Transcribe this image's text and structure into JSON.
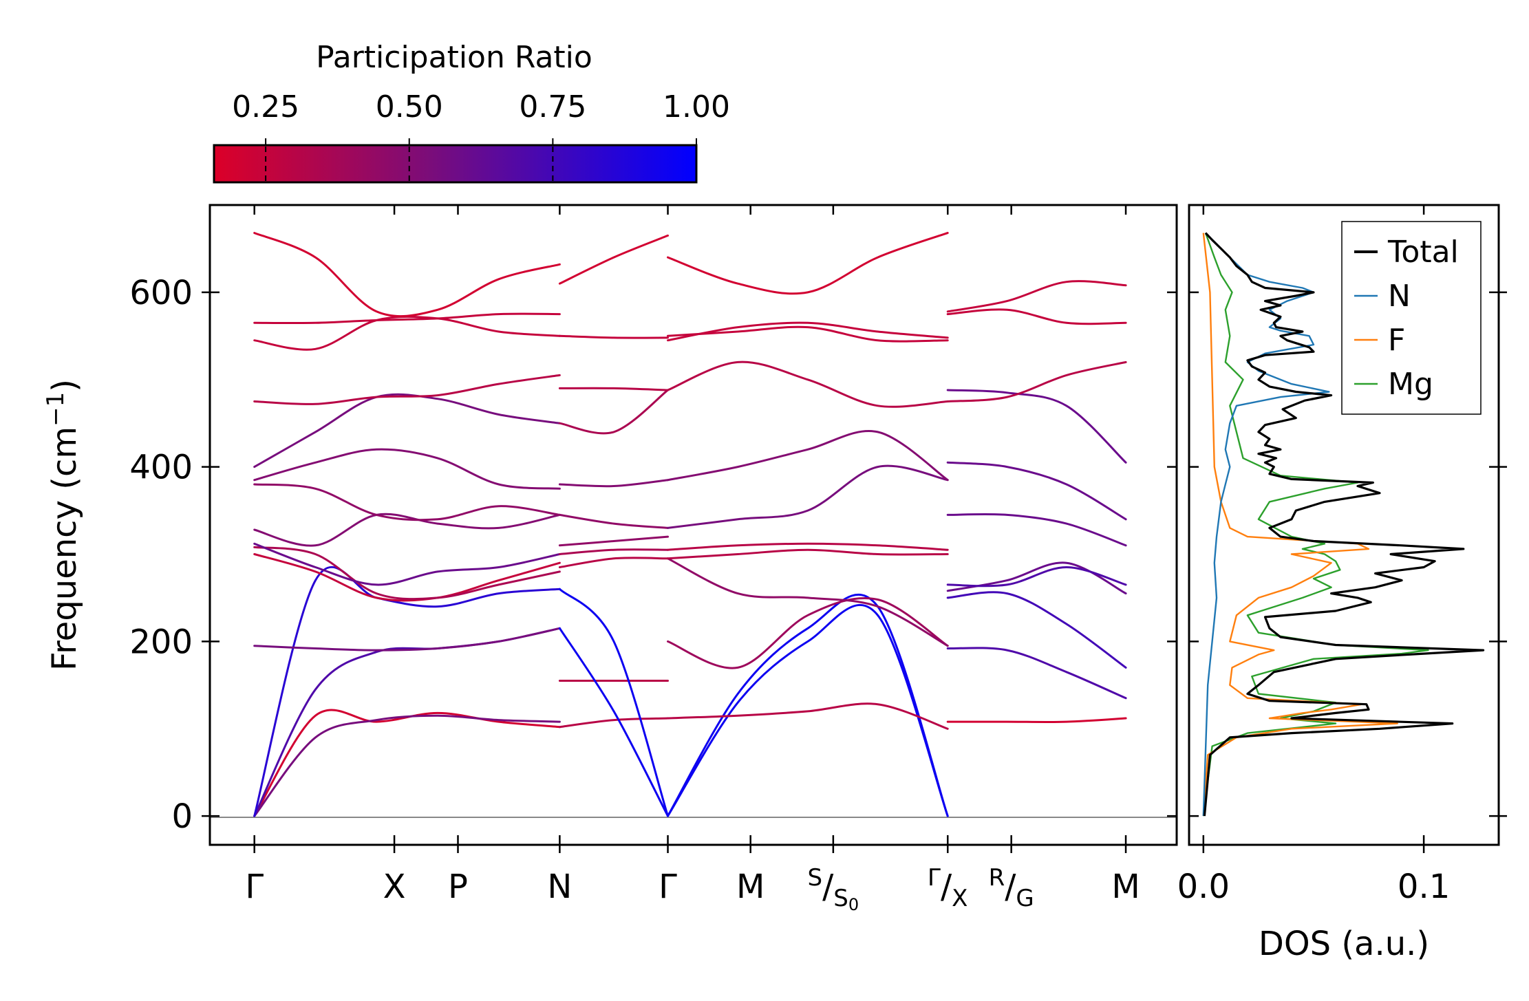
{
  "chart_data": [
    {
      "type": "colorbar",
      "title": "Participation Ratio",
      "ticks": [
        "0.25",
        "0.50",
        "0.75",
        "1.00"
      ],
      "tick_values": [
        0.25,
        0.5,
        0.75,
        1.0
      ],
      "range": [
        0.16,
        1.0
      ],
      "color_low": "#dc0028",
      "color_mid": "#7a0d7a",
      "color_high": "#0000ff"
    },
    {
      "type": "line",
      "subtype": "phonon-dispersion",
      "ylabel": "Frequency (cm",
      "ylabel_sup": "−1",
      "ylabel_close": ")",
      "ylim": [
        -33,
        700
      ],
      "yticks": [
        "0",
        "200",
        "400",
        "600"
      ],
      "ytick_values": [
        0,
        200,
        400,
        600
      ],
      "xlim": [
        -0.35,
        7.25
      ],
      "kpoints": [
        {
          "label": "Γ",
          "x": 0
        },
        {
          "label": "X",
          "x": 1.1
        },
        {
          "label": "P",
          "x": 1.6
        },
        {
          "label": "N",
          "x": 2.4
        },
        {
          "label": "Γ",
          "x": 3.25
        },
        {
          "label": "M",
          "x": 3.9
        },
        {
          "label": "S",
          "sub": "S",
          "sub2": "0",
          "x": 4.55
        },
        {
          "label": "Γ",
          "sub": "X",
          "x": 5.45
        },
        {
          "label": "R",
          "sub": "G",
          "x": 5.95
        },
        {
          "label": "M",
          "x": 6.85
        }
      ],
      "segments": [
        {
          "x": [
            0,
            2.4
          ],
          "bands": [
            {
              "y": [
                0,
                115,
                108,
                118,
                108,
                102
              ],
              "pr": 0.2
            },
            {
              "y": [
                0,
                90,
                110,
                115,
                110,
                108
              ],
              "pr": 0.55
            },
            {
              "y": [
                0,
                145,
                188,
                192,
                200,
                215
              ],
              "pr": 0.7
            },
            {
              "y": [
                0,
                270,
                250,
                240,
                255,
                260
              ],
              "pr": 0.85
            },
            {
              "y": [
                195,
                192,
                190,
                192,
                200,
                215
              ],
              "pr": 0.55
            },
            {
              "y": [
                300,
                280,
                250,
                250,
                270,
                290
              ],
              "pr": 0.25
            },
            {
              "y": [
                308,
                300,
                255,
                250,
                265,
                280
              ],
              "pr": 0.35
            },
            {
              "y": [
                312,
                285,
                265,
                280,
                285,
                300
              ],
              "pr": 0.6
            },
            {
              "y": [
                328,
                310,
                345,
                335,
                330,
                345
              ],
              "pr": 0.5
            },
            {
              "y": [
                380,
                375,
                345,
                340,
                355,
                345
              ],
              "pr": 0.45
            },
            {
              "y": [
                385,
                405,
                420,
                410,
                380,
                375
              ],
              "pr": 0.5
            },
            {
              "y": [
                400,
                440,
                480,
                478,
                460,
                450
              ],
              "pr": 0.55
            },
            {
              "y": [
                475,
                472,
                480,
                482,
                495,
                505
              ],
              "pr": 0.3
            },
            {
              "y": [
                545,
                535,
                568,
                570,
                555,
                550
              ],
              "pr": 0.25
            },
            {
              "y": [
                565,
                565,
                568,
                570,
                575,
                575
              ],
              "pr": 0.25
            },
            {
              "y": [
                668,
                640,
                578,
                580,
                615,
                632
              ],
              "pr": 0.2
            }
          ]
        },
        {
          "x": [
            2.4,
            3.25
          ],
          "bands": [
            {
              "y": [
                102,
                110,
                112
              ],
              "pr": 0.3
            },
            {
              "y": [
                155,
                155,
                155
              ],
              "pr": 0.3
            },
            {
              "y": [
                215,
                120,
                0
              ],
              "pr": 0.95
            },
            {
              "y": [
                260,
                200,
                0
              ],
              "pr": 0.95
            },
            {
              "y": [
                285,
                295,
                295
              ],
              "pr": 0.3
            },
            {
              "y": [
                300,
                305,
                305
              ],
              "pr": 0.35
            },
            {
              "y": [
                310,
                315,
                320
              ],
              "pr": 0.45
            },
            {
              "y": [
                345,
                335,
                330
              ],
              "pr": 0.45
            },
            {
              "y": [
                380,
                378,
                385
              ],
              "pr": 0.5
            },
            {
              "y": [
                450,
                440,
                488
              ],
              "pr": 0.35
            },
            {
              "y": [
                490,
                490,
                488
              ],
              "pr": 0.3
            },
            {
              "y": [
                550,
                548,
                548
              ],
              "pr": 0.25
            },
            {
              "y": [
                610,
                640,
                665
              ],
              "pr": 0.2
            }
          ]
        },
        {
          "x": [
            3.25,
            5.45
          ],
          "bands": [
            {
              "y": [
                0,
                130,
                200,
                230,
                0
              ],
              "pr": 0.95
            },
            {
              "y": [
                0,
                140,
                215,
                240,
                0
              ],
              "pr": 0.95
            },
            {
              "y": [
                112,
                115,
                120,
                128,
                100
              ],
              "pr": 0.3
            },
            {
              "y": [
                200,
                170,
                230,
                248,
                195
              ],
              "pr": 0.4
            },
            {
              "y": [
                295,
                255,
                250,
                240,
                195
              ],
              "pr": 0.45
            },
            {
              "y": [
                295,
                300,
                305,
                300,
                300
              ],
              "pr": 0.3
            },
            {
              "y": [
                305,
                310,
                312,
                310,
                305
              ],
              "pr": 0.3
            },
            {
              "y": [
                330,
                340,
                350,
                400,
                385
              ],
              "pr": 0.55
            },
            {
              "y": [
                385,
                400,
                420,
                440,
                385
              ],
              "pr": 0.5
            },
            {
              "y": [
                488,
                520,
                500,
                470,
                475
              ],
              "pr": 0.3
            },
            {
              "y": [
                545,
                560,
                565,
                555,
                548
              ],
              "pr": 0.25
            },
            {
              "y": [
                550,
                555,
                560,
                545,
                545
              ],
              "pr": 0.25
            },
            {
              "y": [
                640,
                610,
                600,
                640,
                668
              ],
              "pr": 0.2
            }
          ]
        },
        {
          "x": [
            5.45,
            6.85
          ],
          "bands": [
            {
              "y": [
                108,
                108,
                108,
                112
              ],
              "pr": 0.2
            },
            {
              "y": [
                192,
                190,
                165,
                135
              ],
              "pr": 0.7
            },
            {
              "y": [
                250,
                255,
                220,
                170
              ],
              "pr": 0.75
            },
            {
              "y": [
                258,
                270,
                290,
                255
              ],
              "pr": 0.6
            },
            {
              "y": [
                265,
                265,
                285,
                265
              ],
              "pr": 0.7
            },
            {
              "y": [
                345,
                345,
                335,
                310
              ],
              "pr": 0.6
            },
            {
              "y": [
                405,
                400,
                380,
                340
              ],
              "pr": 0.6
            },
            {
              "y": [
                488,
                485,
                470,
                405
              ],
              "pr": 0.6
            },
            {
              "y": [
                475,
                480,
                505,
                520
              ],
              "pr": 0.3
            },
            {
              "y": [
                575,
                580,
                565,
                565
              ],
              "pr": 0.25
            },
            {
              "y": [
                578,
                590,
                612,
                608
              ],
              "pr": 0.25
            }
          ]
        }
      ]
    },
    {
      "type": "line",
      "subtype": "density-of-states",
      "xlabel": "DOS (a.u.)",
      "xlim": [
        -0.0065,
        0.134
      ],
      "xticks": [
        "0.0",
        "0.1"
      ],
      "xtick_values": [
        0.0,
        0.1
      ],
      "ylim": [
        -33,
        700
      ],
      "legend_position": "top-right",
      "series": [
        {
          "name": "Total",
          "color": "#000000",
          "frequency": [
            0,
            70,
            90,
            95,
            100,
            106,
            112,
            118,
            122,
            128,
            132,
            140,
            150,
            165,
            180,
            186,
            190,
            196,
            205,
            215,
            228,
            235,
            245,
            250,
            255,
            262,
            270,
            278,
            285,
            292,
            300,
            306,
            310,
            315,
            320,
            330,
            340,
            350,
            360,
            370,
            378,
            382,
            386,
            392,
            400,
            405,
            410,
            415,
            420,
            425,
            432,
            440,
            448,
            456,
            466,
            476,
            482,
            486,
            492,
            500,
            508,
            515,
            522,
            528,
            532,
            537,
            545,
            550,
            555,
            560,
            565,
            572,
            580,
            585,
            590,
            596,
            600,
            605,
            612,
            620,
            630,
            640,
            650,
            660,
            668
          ],
          "values": [
            0.0005,
            0.003,
            0.012,
            0.04,
            0.08,
            0.113,
            0.04,
            0.06,
            0.075,
            0.074,
            0.03,
            0.02,
            0.025,
            0.032,
            0.06,
            0.1,
            0.127,
            0.06,
            0.035,
            0.03,
            0.028,
            0.06,
            0.076,
            0.07,
            0.058,
            0.078,
            0.09,
            0.078,
            0.1,
            0.105,
            0.085,
            0.118,
            0.09,
            0.05,
            0.035,
            0.03,
            0.04,
            0.042,
            0.055,
            0.08,
            0.07,
            0.077,
            0.04,
            0.03,
            0.032,
            0.028,
            0.033,
            0.025,
            0.035,
            0.028,
            0.03,
            0.025,
            0.028,
            0.042,
            0.036,
            0.046,
            0.058,
            0.042,
            0.03,
            0.025,
            0.028,
            0.022,
            0.02,
            0.028,
            0.05,
            0.048,
            0.038,
            0.035,
            0.045,
            0.033,
            0.032,
            0.035,
            0.026,
            0.035,
            0.028,
            0.042,
            0.05,
            0.028,
            0.022,
            0.02,
            0.015,
            0.012,
            0.008,
            0.004,
            0.001
          ]
        },
        {
          "name": "N",
          "color": "#1f77b4",
          "frequency": [
            0,
            150,
            200,
            250,
            290,
            320,
            360,
            380,
            400,
            420,
            450,
            470,
            480,
            486,
            495,
            510,
            520,
            530,
            540,
            550,
            556,
            560,
            570,
            580,
            590,
            600,
            605,
            612,
            620,
            640,
            668
          ],
          "values": [
            0,
            0.002,
            0.004,
            0.006,
            0.005,
            0.006,
            0.008,
            0.01,
            0.012,
            0.01,
            0.012,
            0.015,
            0.035,
            0.057,
            0.04,
            0.025,
            0.02,
            0.028,
            0.05,
            0.048,
            0.035,
            0.03,
            0.035,
            0.03,
            0.038,
            0.05,
            0.045,
            0.03,
            0.02,
            0.012,
            0.001
          ]
        },
        {
          "name": "F",
          "color": "#ff7f0e",
          "frequency": [
            0,
            70,
            90,
            100,
            106,
            112,
            118,
            122,
            128,
            135,
            150,
            170,
            185,
            190,
            200,
            230,
            250,
            262,
            275,
            290,
            300,
            306,
            312,
            320,
            330,
            360,
            400,
            500,
            600,
            668
          ],
          "values": [
            0,
            0.002,
            0.015,
            0.04,
            0.088,
            0.03,
            0.045,
            0.058,
            0.072,
            0.02,
            0.012,
            0.013,
            0.025,
            0.032,
            0.012,
            0.015,
            0.025,
            0.04,
            0.05,
            0.058,
            0.04,
            0.075,
            0.07,
            0.02,
            0.012,
            0.008,
            0.005,
            0.004,
            0.003,
            0
          ]
        },
        {
          "name": "Mg",
          "color": "#2ca02c",
          "frequency": [
            0,
            80,
            95,
            106,
            112,
            120,
            130,
            140,
            160,
            180,
            186,
            190,
            196,
            210,
            230,
            250,
            262,
            272,
            282,
            292,
            300,
            306,
            312,
            320,
            340,
            360,
            375,
            382,
            390,
            410,
            440,
            470,
            500,
            520,
            550,
            580,
            600,
            620,
            640,
            668
          ],
          "values": [
            0,
            0.004,
            0.02,
            0.06,
            0.035,
            0.05,
            0.06,
            0.025,
            0.022,
            0.05,
            0.09,
            0.102,
            0.06,
            0.025,
            0.02,
            0.045,
            0.058,
            0.05,
            0.062,
            0.06,
            0.055,
            0.045,
            0.055,
            0.04,
            0.025,
            0.03,
            0.055,
            0.07,
            0.035,
            0.018,
            0.015,
            0.012,
            0.018,
            0.01,
            0.012,
            0.01,
            0.013,
            0.008,
            0.005,
            0.001
          ]
        }
      ]
    }
  ]
}
